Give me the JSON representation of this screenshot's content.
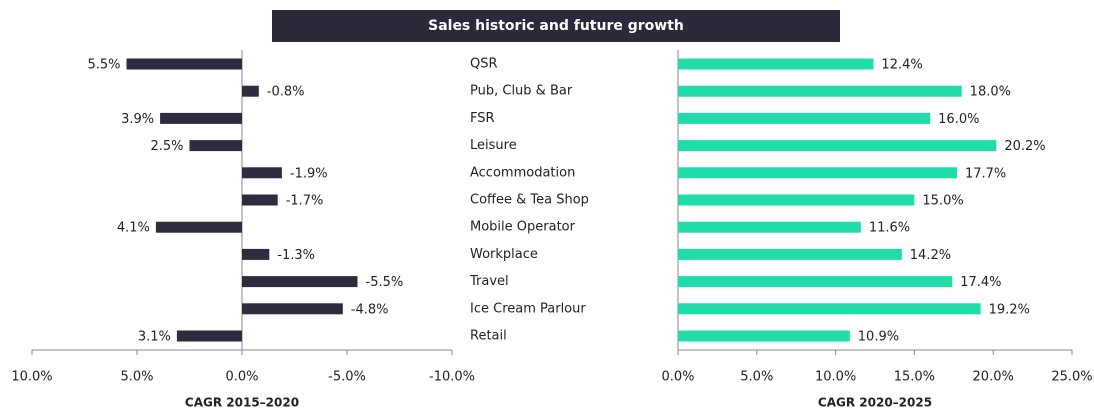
{
  "title": "Sales historic and future growth",
  "chart_data": [
    {
      "type": "bar",
      "orientation": "horizontal",
      "axis_label": "CAGR 2015–2020",
      "categories": [
        "QSR",
        "Pub, Club & Bar",
        "FSR",
        "Leisure",
        "Accommodation",
        "Coffee & Tea Shop",
        "Mobile Operator",
        "Workplace",
        "Travel",
        "Ice Cream Parlour",
        "Retail"
      ],
      "values": [
        5.5,
        -0.8,
        3.9,
        2.5,
        -1.9,
        -1.7,
        4.1,
        -1.3,
        -5.5,
        -4.8,
        3.1
      ],
      "value_labels": [
        "5.5%",
        "-0.8%",
        "3.9%",
        "2.5%",
        "-1.9%",
        "-1.7%",
        "4.1%",
        "-1.3%",
        "-5.5%",
        "-4.8%",
        "3.1%"
      ],
      "color": "#2e2c3e",
      "xlim": [
        10,
        -10
      ],
      "xticks": [
        {
          "value": 10,
          "label": "10.0%"
        },
        {
          "value": 5,
          "label": "5.0%"
        },
        {
          "value": 0,
          "label": "0.0%"
        },
        {
          "value": -5,
          "label": "-5.0%"
        },
        {
          "value": -10,
          "label": "-10.0%"
        }
      ]
    },
    {
      "type": "bar",
      "orientation": "horizontal",
      "axis_label": "CAGR 2020–2025",
      "values": [
        12.4,
        18.0,
        16.0,
        20.2,
        17.7,
        15.0,
        11.6,
        14.2,
        17.4,
        19.2,
        10.9
      ],
      "value_labels": [
        "12.4%",
        "18.0%",
        "16.0%",
        "20.2%",
        "17.7%",
        "15.0%",
        "11.6%",
        "14.2%",
        "17.4%",
        "19.2%",
        "10.9%"
      ],
      "color": "#1fdca8",
      "xlim": [
        0,
        25
      ],
      "xticks": [
        {
          "value": 0,
          "label": "0.0%"
        },
        {
          "value": 5,
          "label": "5.0%"
        },
        {
          "value": 10,
          "label": "10.0%"
        },
        {
          "value": 15,
          "label": "15.0%"
        },
        {
          "value": 20,
          "label": "20.0%"
        },
        {
          "value": 25,
          "label": "25.0%"
        }
      ]
    }
  ]
}
